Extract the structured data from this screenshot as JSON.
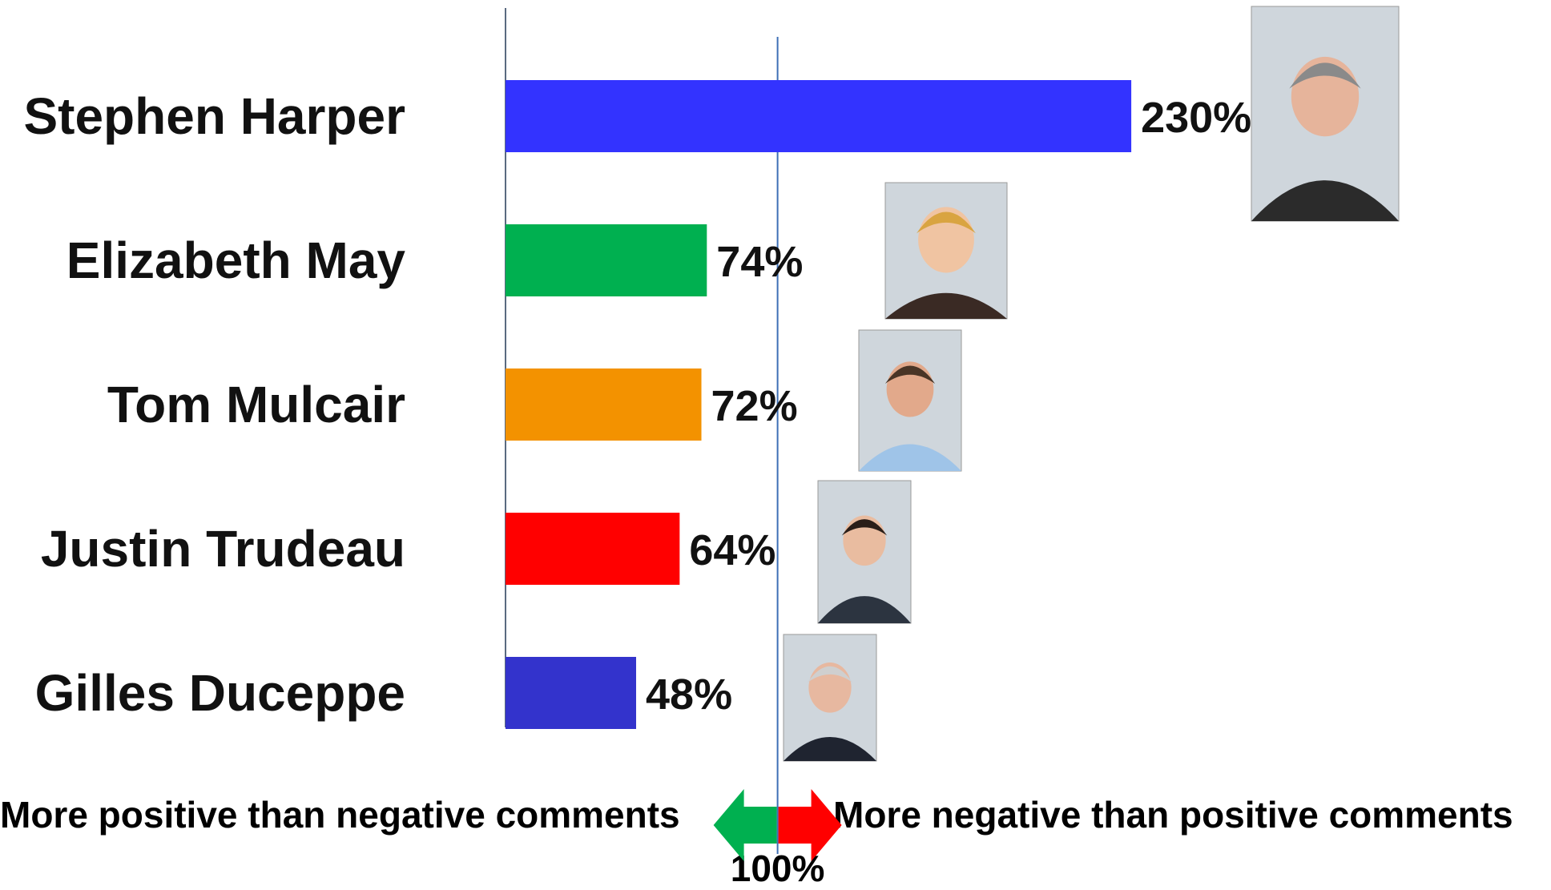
{
  "chart_data": {
    "type": "bar",
    "orientation": "horizontal",
    "categories": [
      "Stephen Harper",
      "Elizabeth May",
      "Tom Mulcair",
      "Justin Trudeau",
      "Gilles Duceppe"
    ],
    "values": [
      230,
      74,
      72,
      64,
      48
    ],
    "value_labels": [
      "230%",
      "74%",
      "72%",
      "64%",
      "48%"
    ],
    "colors": [
      "#3333ff",
      "#00b050",
      "#f39200",
      "#ff0000",
      "#3333cc"
    ],
    "reference_line": {
      "value": 100,
      "label": "100%"
    },
    "xlim": [
      0,
      230
    ],
    "left_caption": "More positive than negative comments",
    "right_caption": "More negative than positive comments",
    "arrow_colors": {
      "left": "#00b050",
      "right": "#ff0000"
    },
    "grid": false,
    "legend": "none",
    "photos": [
      "portrait-stephen-harper",
      "portrait-elizabeth-may",
      "portrait-tom-mulcair",
      "portrait-justin-trudeau",
      "portrait-gilles-duceppe"
    ]
  }
}
